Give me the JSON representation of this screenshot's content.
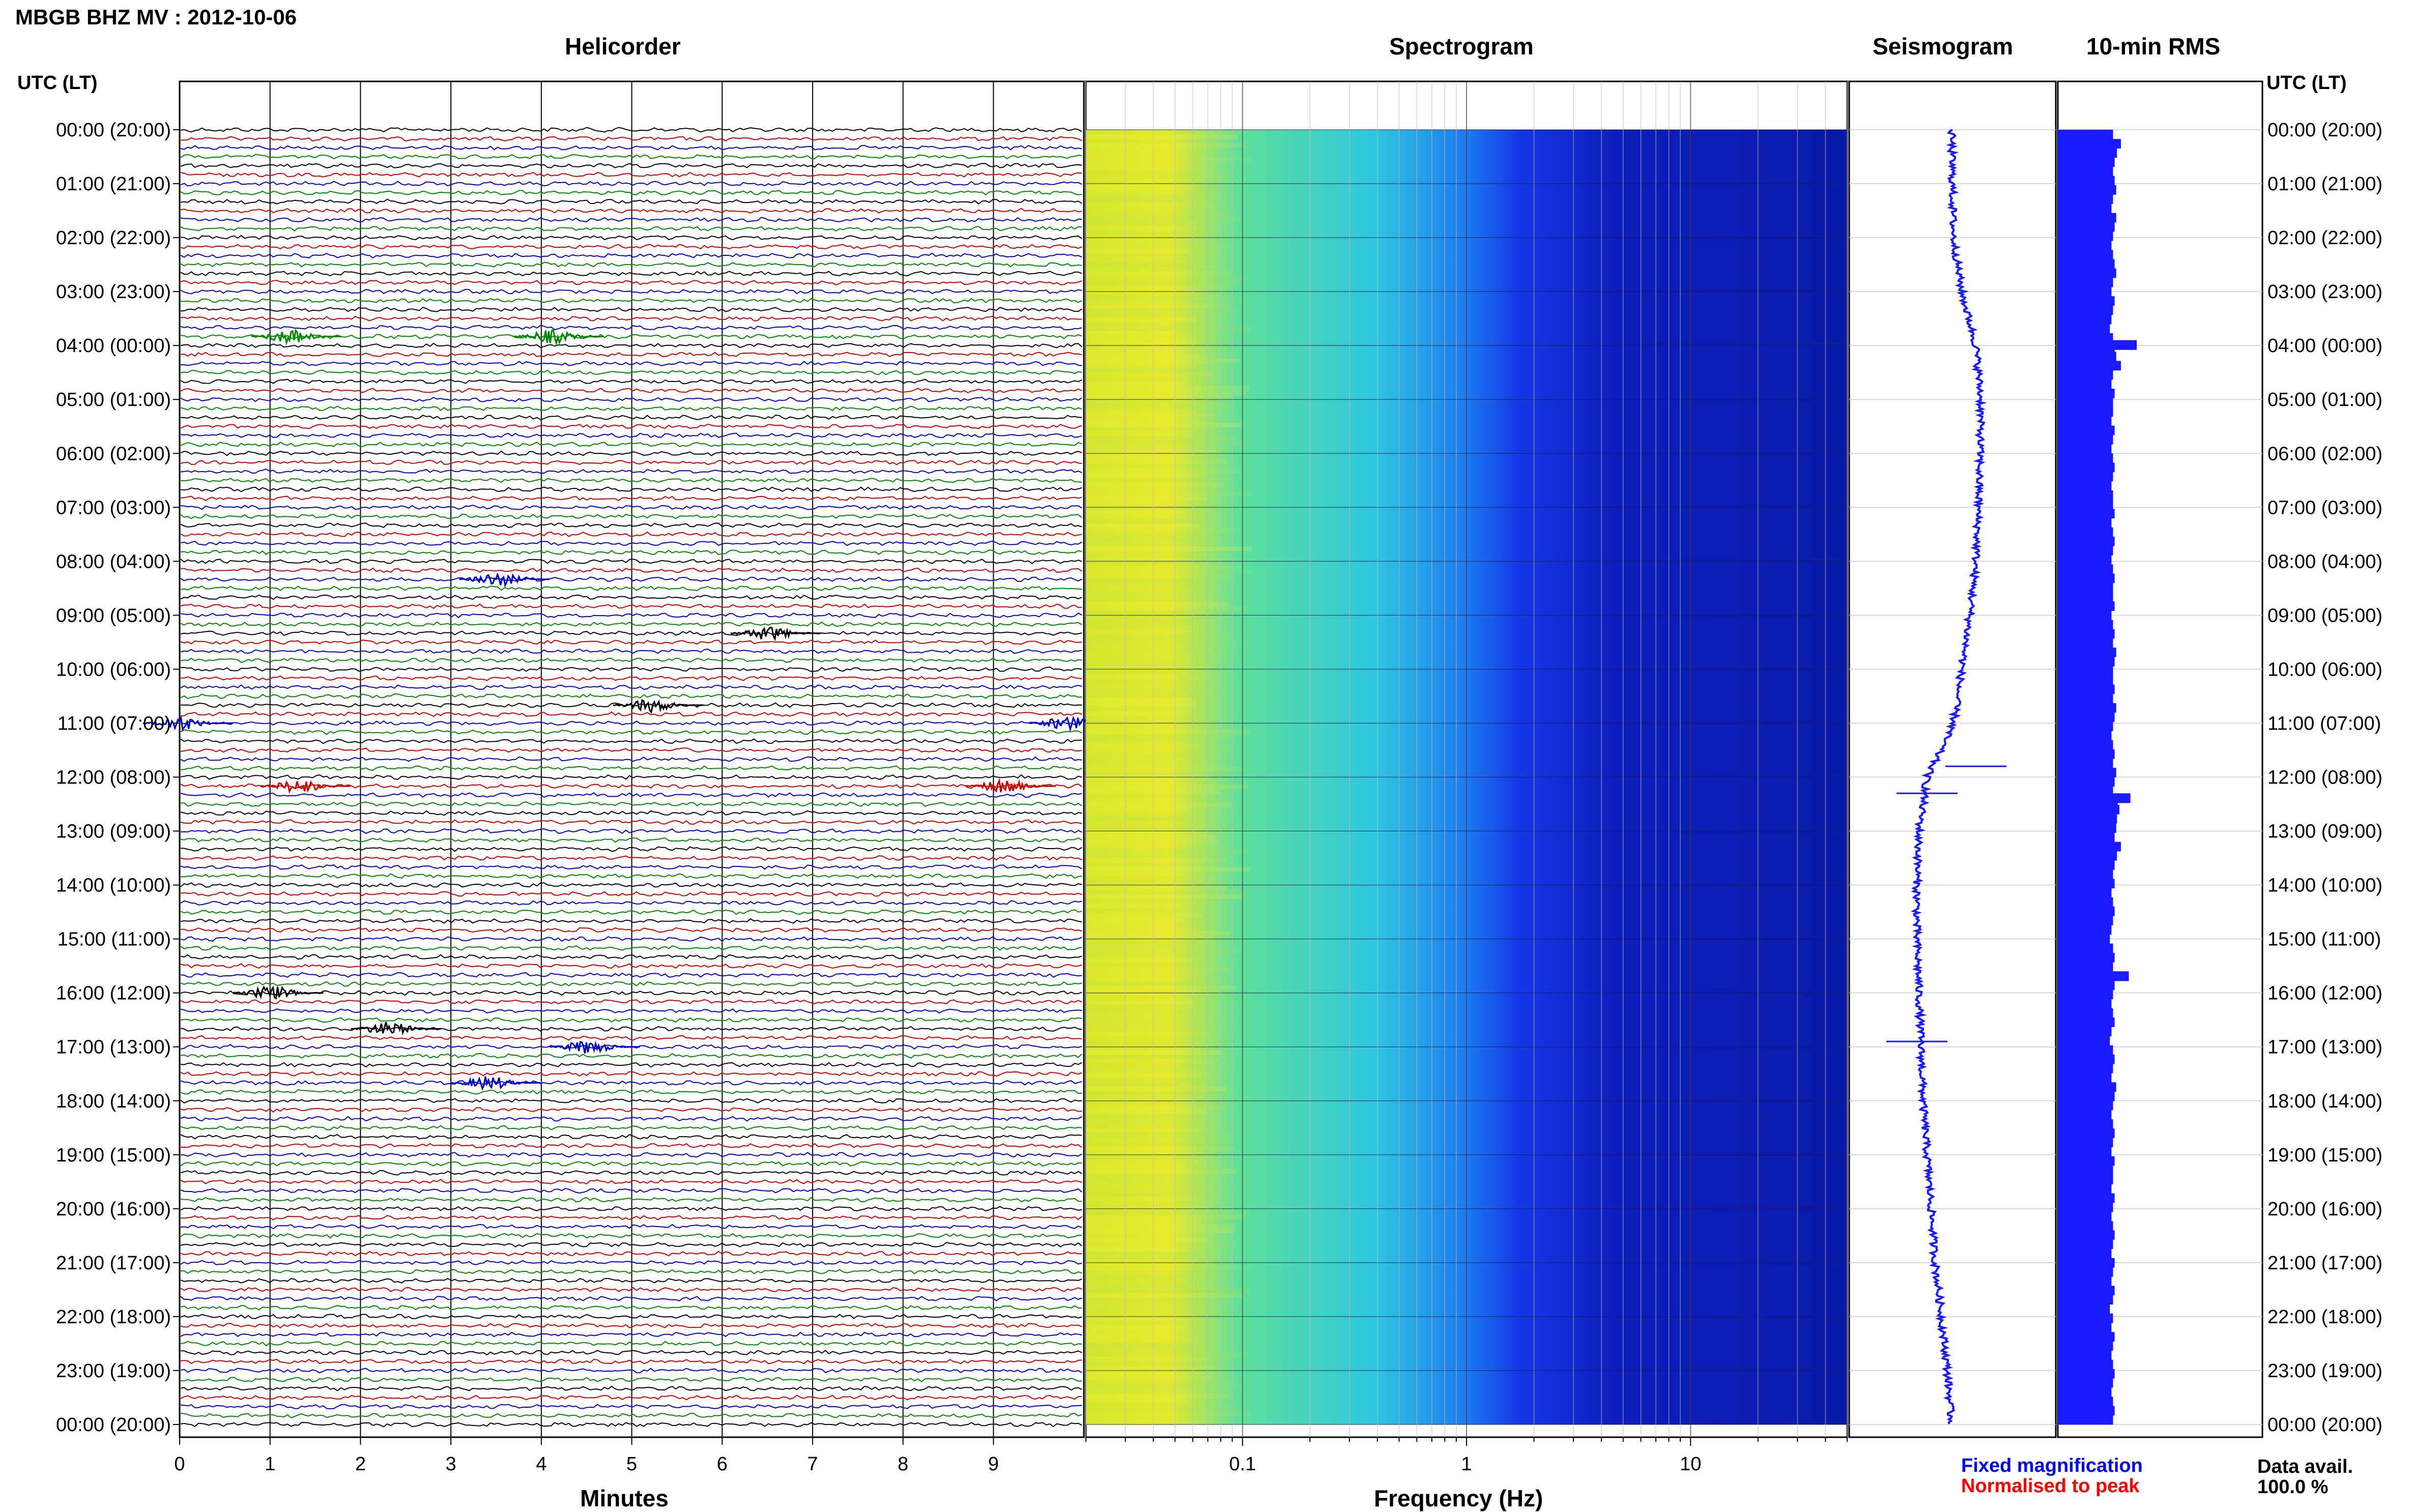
{
  "header": {
    "title": "MBGB BHZ MV : 2012-10-06",
    "utc_label_left": "UTC (LT)",
    "utc_label_right": "UTC (LT)"
  },
  "panels": {
    "helicorder": "Helicorder",
    "spectrogram": "Spectrogram",
    "seismogram": "Seismogram",
    "rms": "10-min RMS"
  },
  "axes": {
    "helicorder_xlabel": "Minutes",
    "spectrogram_xlabel": "Frequency (Hz)"
  },
  "legend": {
    "fixed": "Fixed magnification",
    "normalised": "Normalised to peak",
    "fixed_color": "#0000ff",
    "normalised_color": "#ff0000"
  },
  "data_avail": {
    "label": "Data avail.",
    "value": "100.0 %"
  },
  "colors": {
    "trace_cycle": [
      "#000000",
      "#cc0000",
      "#0000cc",
      "#008800"
    ],
    "seismogram": "#1a1aff",
    "rms": "#1a1aff"
  },
  "chart_data": [
    {
      "type": "line",
      "name_panel": "helicorder",
      "x_ticks": [
        "0",
        "1",
        "2",
        "3",
        "4",
        "5",
        "6",
        "7",
        "8",
        "9"
      ],
      "xlim": [
        0,
        10
      ],
      "lines_per_hour": 6,
      "hours": 24,
      "events": [
        {
          "hour": 3.8,
          "minute": 1.3
        },
        {
          "hour": 3.8,
          "minute": 4.2
        },
        {
          "hour": 8.3,
          "minute": 3.6
        },
        {
          "hour": 9.3,
          "minute": 6.6
        },
        {
          "hour": 10.65,
          "minute": 5.3
        },
        {
          "hour": 11.0,
          "minute": 0.1
        },
        {
          "hour": 11.0,
          "minute": 9.9
        },
        {
          "hour": 12.1,
          "minute": 1.4
        },
        {
          "hour": 12.1,
          "minute": 9.2
        },
        {
          "hour": 16.0,
          "minute": 1.1
        },
        {
          "hour": 16.7,
          "minute": 2.4
        },
        {
          "hour": 17.0,
          "minute": 4.6
        },
        {
          "hour": 17.65,
          "minute": 3.5
        }
      ]
    },
    {
      "type": "heatmap",
      "name_panel": "spectrogram",
      "x_scale": "log",
      "xlim": [
        0.02,
        50
      ],
      "x_ticks": [
        "0.1",
        "1",
        "10"
      ]
    },
    {
      "type": "line",
      "name_panel": "seismogram",
      "offset_series": [
        0,
        0.02,
        0.05,
        0.25,
        0.6,
        0.72,
        0.7,
        0.66,
        0.6,
        0.45,
        0.25,
        0.05,
        -0.6,
        -0.8,
        -0.85,
        -0.85,
        -0.8,
        -0.75,
        -0.7,
        -0.6,
        -0.5,
        -0.4,
        -0.25,
        -0.1,
        0.0
      ]
    },
    {
      "type": "bar",
      "name_panel": "rms",
      "orientation": "horizontal",
      "values": [
        0.7,
        0.8,
        0.75,
        0.72,
        0.7,
        0.72,
        0.74,
        0.7,
        0.68,
        0.74,
        0.72,
        0.7,
        0.68,
        0.7,
        0.72,
        0.74,
        0.7,
        0.68,
        0.72,
        0.7,
        0.68,
        0.66,
        0.7,
        0.72,
        0.74,
        0.8,
        0.7,
        0.68,
        0.72,
        0.7,
        0.7,
        0.68,
        0.72,
        0.7,
        0.68,
        0.7,
        0.72,
        0.7,
        0.68,
        0.7,
        0.7,
        0.72,
        0.68,
        0.7,
        0.72,
        0.7,
        0.68,
        0.7,
        0.72,
        0.7,
        0.7,
        0.72,
        0.68,
        0.7,
        0.72,
        0.7,
        0.74,
        0.72,
        0.7,
        0.7,
        0.72,
        0.7,
        0.74,
        0.72,
        0.7,
        0.68,
        0.7,
        0.72,
        0.7,
        0.74,
        0.72,
        0.7,
        0.76,
        0.78,
        0.75,
        0.74,
        0.72,
        0.8,
        0.75,
        0.72,
        0.7,
        0.72,
        0.68,
        0.7,
        0.72,
        0.7,
        0.68,
        0.66,
        0.7,
        0.72,
        0.7,
        0.74,
        0.72,
        0.7,
        0.68,
        0.7,
        0.72,
        0.68,
        0.66,
        0.7,
        0.72,
        0.7,
        0.68,
        0.74,
        0.72,
        0.7,
        0.68,
        0.7,
        0.72,
        0.7,
        0.68,
        0.72,
        0.7,
        0.7,
        0.68,
        0.72,
        0.7,
        0.68,
        0.7,
        0.72,
        0.7,
        0.68,
        0.72,
        0.7,
        0.68,
        0.72,
        0.7,
        0.66,
        0.7,
        0.68,
        0.72,
        0.7,
        0.68,
        0.7,
        0.72,
        0.7,
        0.68,
        0.7,
        0.72,
        0.7
      ],
      "peaks": [
        {
          "hour": 3.9,
          "value": 1.0
        },
        {
          "hour": 12.3,
          "value": 0.92
        },
        {
          "hour": 15.6,
          "value": 0.9
        }
      ]
    }
  ],
  "hour_labels": [
    "00:00 (20:00)",
    "01:00 (21:00)",
    "02:00 (22:00)",
    "03:00 (23:00)",
    "04:00 (00:00)",
    "05:00 (01:00)",
    "06:00 (02:00)",
    "07:00 (03:00)",
    "08:00 (04:00)",
    "09:00 (05:00)",
    "10:00 (06:00)",
    "11:00 (07:00)",
    "12:00 (08:00)",
    "13:00 (09:00)",
    "14:00 (10:00)",
    "15:00 (11:00)",
    "16:00 (12:00)",
    "17:00 (13:00)",
    "18:00 (14:00)",
    "19:00 (15:00)",
    "20:00 (16:00)",
    "21:00 (17:00)",
    "22:00 (18:00)",
    "23:00 (19:00)",
    "00:00 (20:00)"
  ]
}
